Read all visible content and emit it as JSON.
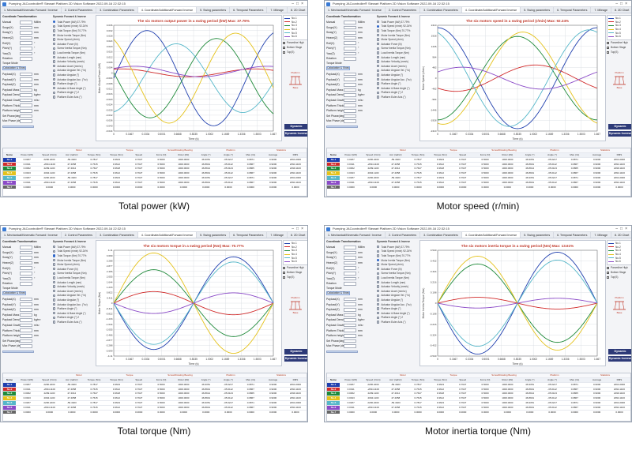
{
  "window": {
    "title": "Pumping JACcontroller® Stewart Platform 2D Vision Software 2022-09-16 22:32:15",
    "tabs": [
      "1. Mechanical/Kinematic Forward / Inverse",
      "2. Control Parameters",
      "3. Combination Parameters",
      "4. Coordinate/Additional/Forward Inverse",
      "5. Swing parameters",
      "6. Temporal Parameters",
      "7. Mileage",
      "8. 2D Chart",
      "9. Animation",
      "10. Simulator",
      "11. About"
    ],
    "active_tab": 3
  },
  "controls": {
    "header": "Coordinate Transformation",
    "rows": [
      {
        "label": "Manual",
        "value": "0.08",
        "unit": "Millim"
      },
      {
        "label": "Surge(X)",
        "value": "0",
        "unit": "mm"
      },
      {
        "label": "Sway(Y)",
        "value": "0",
        "unit": "mm"
      },
      {
        "label": "Heave(Z)",
        "value": "1.144",
        "unit": "mm"
      },
      {
        "label": "Roll(X)",
        "value": "0",
        "unit": "°"
      },
      {
        "label": "Pitch(Y)",
        "value": "0",
        "unit": "°"
      },
      {
        "label": "Yaw(Z)",
        "value": "0",
        "unit": "°"
      },
      {
        "label": "Rotation",
        "value": "1",
        "unit": ""
      },
      {
        "label": "Payload(X)",
        "value": "0.000",
        "unit": "mm"
      },
      {
        "label": "Payload(Y)",
        "value": "0.000",
        "unit": "mm"
      },
      {
        "label": "Payload(Z)",
        "value": "1000",
        "unit": "mm"
      },
      {
        "label": "Payload Mass",
        "value": "1000",
        "unit": "kg"
      },
      {
        "label": "Payload Density",
        "value": "7.85",
        "unit": "kg/m³"
      },
      {
        "label": "Payload Gravity",
        "value": "9.81",
        "unit": "m/s²"
      },
      {
        "label": "Platform Thickness",
        "value": "11.0",
        "unit": "mm"
      },
      {
        "label": "Platform height",
        "value": "100",
        "unit": "mm"
      },
      {
        "label": "Set Phase(deg)",
        "value": "0",
        "unit": ""
      },
      {
        "label": "Max Phase (deg)",
        "value": "360",
        "unit": ""
      }
    ],
    "torque_mode": "Torque Mode",
    "calc_button": "Calculation & Show",
    "cuboid_label": "Cuboid",
    "preset_label": "Preset"
  },
  "series_list": {
    "header": "Dynamic Forward & Inverse",
    "items": [
      {
        "label": "Total Power (kW) 37.79%",
        "on": false
      },
      {
        "label": "Total Speed (r/min) 92.24%",
        "on": false
      },
      {
        "label": "Total Torque (Nm) 70.77%",
        "on": false
      },
      {
        "label": "Motor Inertia Torque (Nm)",
        "on": false
      },
      {
        "label": "Motor Speed (r/min)",
        "on": false
      },
      {
        "label": "Actuator Force (N)",
        "on": false
      },
      {
        "label": "Screw Inertia Torque (Nm)",
        "on": false
      },
      {
        "label": "Load Inertia Torque (Nm)",
        "on": false
      },
      {
        "label": "Actuator Length (mm)",
        "on": false
      },
      {
        "label": "Actuator Velocity (mm/s)",
        "on": false
      },
      {
        "label": "Actuator Accel (mm/s²)",
        "on": false
      },
      {
        "label": "Actuator Angular Vel. (°/s)",
        "on": false
      },
      {
        "label": "Actuator Angular (°)",
        "on": false
      },
      {
        "label": "Actuator Angular Acc. (°/s²)",
        "on": false
      },
      {
        "label": "Platform Angle (°)",
        "on": false
      },
      {
        "label": "Actuator & Base Angle (°)",
        "on": false
      },
      {
        "label": "Platform Angle (°) 2",
        "on": false
      },
      {
        "label": "Platform Euler Axis (°)",
        "on": false
      }
    ]
  },
  "panels": [
    {
      "caption": "Total power (kW)",
      "selected_item": 0,
      "chart_data": {
        "type": "line",
        "title": "The six motors output power in a swing period (kW)   Max: 37.79%",
        "xlabel": "Time (s)",
        "ylabel": "Motor Output Power (kW)",
        "xlim": [
          0,
          1.667
        ],
        "ylim": [
          -0.044,
          0.036
        ],
        "x_ticks": [
          "0",
          "0.1667",
          "0.3334",
          "0.5001",
          "0.6668",
          "0.8335",
          "1.0002",
          "1.1669",
          "1.3336",
          "1.5003",
          "1.667"
        ],
        "y_ticks": [
          "0.036",
          "0.032",
          "0.028",
          "0.024",
          "0.020",
          "0.016",
          "0.012",
          "0.008",
          "0.004",
          "0",
          "-0.004",
          "-0.008",
          "-0.012",
          "-0.016",
          "-0.020",
          "-0.024",
          "-0.028",
          "-0.032",
          "-0.036",
          "-0.040",
          "-0.044"
        ],
        "grid": true,
        "legend_position": "top-right",
        "series": [
          {
            "name": "No.1",
            "color": "#1f3fae",
            "amp": 0.036,
            "phase": 0.0,
            "freq": 1.2,
            "offset": -0.004
          },
          {
            "name": "No.2",
            "color": "#d12a2a",
            "amp": 0.003,
            "phase": 1.2,
            "freq": 1.2,
            "offset": 0.0
          },
          {
            "name": "No.3",
            "color": "#1f8a3a",
            "amp": 0.03,
            "phase": 3.0,
            "freq": 1.2,
            "offset": -0.004
          },
          {
            "name": "No.4",
            "color": "#e5c21a",
            "amp": 0.034,
            "phase": 2.1,
            "freq": 1.2,
            "offset": -0.004
          },
          {
            "name": "No.5",
            "color": "#55b7c9",
            "amp": 0.026,
            "phase": 4.9,
            "freq": 1.2,
            "offset": -0.004
          },
          {
            "name": "No.6",
            "color": "#8a4ac7",
            "amp": 0.004,
            "phase": 0.6,
            "freq": 1.2,
            "offset": 0.001
          }
        ]
      }
    },
    {
      "caption": "Motor speed (r/min)",
      "selected_item": 1,
      "chart_data": {
        "type": "line",
        "title": "The six motors speed in a swing period (r/min)   Max: 92.24%",
        "xlabel": "Time (s)",
        "ylabel": "Motor Speed (r/min)",
        "xlim": [
          0,
          1.667
        ],
        "ylim": [
          -2410,
          2410
        ],
        "x_ticks": [
          "0",
          "0.1667",
          "0.3334",
          "0.5001",
          "0.6668",
          "0.8335",
          "1.0002",
          "1.1669",
          "1.3336",
          "1.5003",
          "1.667"
        ],
        "y_ticks": [
          "2410",
          "1928",
          "1446",
          "964",
          "482",
          "0",
          "-482",
          "-964",
          "-1446",
          "-1928",
          "-2410"
        ],
        "grid": true,
        "legend_position": "top-right",
        "series": [
          {
            "name": "No.1",
            "color": "#1f3fae",
            "amp": 2300,
            "phase": 1.57,
            "freq": 1.0,
            "offset": 0
          },
          {
            "name": "No.2",
            "color": "#d12a2a",
            "amp": 600,
            "phase": 4.0,
            "freq": 1.0,
            "offset": 0
          },
          {
            "name": "No.3",
            "color": "#1f8a3a",
            "amp": 1900,
            "phase": 4.71,
            "freq": 1.0,
            "offset": 0
          },
          {
            "name": "No.4",
            "color": "#e5c21a",
            "amp": 2100,
            "phase": 4.5,
            "freq": 1.0,
            "offset": 0
          },
          {
            "name": "No.5",
            "color": "#55b7c9",
            "amp": 2200,
            "phase": 1.9,
            "freq": 1.0,
            "offset": 0
          },
          {
            "name": "No.6",
            "color": "#8a4ac7",
            "amp": 500,
            "phase": 0.6,
            "freq": 1.0,
            "offset": 0
          }
        ]
      }
    },
    {
      "caption": "Total torque (Nm)",
      "selected_item": 2,
      "chart_data": {
        "type": "line",
        "title": "The six motors torque in a swing period (Nm)   Max: 70.77%",
        "xlabel": "Time (s)",
        "ylabel": "Motor Torque (Nm)",
        "xlim": [
          0,
          1.667
        ],
        "ylim": [
          -4.11,
          4.11
        ],
        "x_ticks": [
          "0",
          "0.1667",
          "0.3334",
          "0.5001",
          "0.6668",
          "0.8335",
          "1.0002",
          "1.1669",
          "1.3336",
          "1.5003",
          "1.667"
        ],
        "y_ticks": [
          "4.11",
          "3.699",
          "3.288",
          "2.877",
          "2.466",
          "2.055",
          "1.644",
          "1.233",
          "0.822",
          "0.411",
          "0",
          "-0.411",
          "-0.822",
          "-1.233",
          "-1.644",
          "-2.055",
          "-2.466",
          "-2.877",
          "-3.288",
          "-3.699",
          "-4.11"
        ],
        "grid": true,
        "legend_position": "top-right",
        "series": [
          {
            "name": "No.1",
            "color": "#1f3fae",
            "amp": 3.6,
            "phase": 3.14,
            "freq": 1.0,
            "offset": 0
          },
          {
            "name": "No.2",
            "color": "#d12a2a",
            "amp": 0.9,
            "phase": 0.0,
            "freq": 1.0,
            "offset": 0
          },
          {
            "name": "No.3",
            "color": "#1f8a3a",
            "amp": 2.6,
            "phase": 0.0,
            "freq": 1.0,
            "offset": 0
          },
          {
            "name": "No.4",
            "color": "#e5c21a",
            "amp": 3.9,
            "phase": 0.0,
            "freq": 1.0,
            "offset": 0
          },
          {
            "name": "No.5",
            "color": "#55b7c9",
            "amp": 3.2,
            "phase": 3.14,
            "freq": 1.0,
            "offset": 0
          },
          {
            "name": "No.6",
            "color": "#8a4ac7",
            "amp": 0.8,
            "phase": 3.14,
            "freq": 1.0,
            "offset": 0
          }
        ]
      }
    },
    {
      "caption": "Motor inertia torque (Nm)",
      "selected_item": 3,
      "chart_data": {
        "type": "line",
        "title": "The six motors inertia torque in a swing period (Nm)   Max: 13.61%",
        "xlabel": "Time (s)",
        "ylabel": "Motor Inertia Torque (Nm)",
        "xlim": [
          0,
          1.667
        ],
        "ylim": [
          -0.54,
          0.54
        ],
        "x_ticks": [
          "0",
          "0.1667",
          "0.3334",
          "0.5001",
          "0.6668",
          "0.8335",
          "1.0002",
          "1.1669",
          "1.3336",
          "1.5003",
          "1.667"
        ],
        "y_ticks": [
          "0.540",
          "0.432",
          "0.324",
          "0.216",
          "0.108",
          "0",
          "-0.108",
          "-0.216",
          "-0.324",
          "-0.432",
          "-0.540"
        ],
        "grid": true,
        "legend_position": "top-right",
        "series": [
          {
            "name": "No.1",
            "color": "#1f3fae",
            "amp": 0.52,
            "phase": 3.14,
            "freq": 1.0,
            "offset": 0
          },
          {
            "name": "No.2",
            "color": "#d12a2a",
            "amp": 0.06,
            "phase": 0.0,
            "freq": 1.0,
            "offset": 0
          },
          {
            "name": "No.3",
            "color": "#1f8a3a",
            "amp": 0.4,
            "phase": 0.0,
            "freq": 1.0,
            "offset": 0
          },
          {
            "name": "No.4",
            "color": "#e5c21a",
            "amp": 0.48,
            "phase": 0.0,
            "freq": 1.0,
            "offset": 0
          },
          {
            "name": "No.5",
            "color": "#55b7c9",
            "amp": 0.44,
            "phase": 3.14,
            "freq": 1.0,
            "offset": 0
          },
          {
            "name": "No.6",
            "color": "#8a4ac7",
            "amp": 0.05,
            "phase": 3.14,
            "freq": 1.0,
            "offset": 0
          }
        ]
      }
    }
  ],
  "side": {
    "checks": [
      "Paramline High",
      "Bottom Stage",
      "Top(S)"
    ],
    "forward_button": "Dynamic Forward",
    "inverse_button": "Dynamic Inverse",
    "platform_label": "Platform",
    "base_label": "Base"
  },
  "table": {
    "groups": [
      "",
      "Motor",
      "Torque",
      "Screw/Rotating Bearing",
      "Platform",
      "Statistics"
    ],
    "headers": [
      "Name",
      "Power (kW)",
      "Speed (r/min)",
      "Acc (rad/s²)",
      "Torque (Nm)",
      "Torque (Nm)",
      "Speed",
      "Force (N)",
      "Rotor (kN)",
      "Angle (°)",
      "Angle (°)",
      "Max (r/s)",
      "Average",
      "RMS"
    ],
    "rows": [
      {
        "name": "No.1",
        "color": "#1f3fae",
        "cells": [
          "0.0187",
          "2296.2200",
          "-59.4923",
          "0.7817",
          "0.3623",
          "0.7627",
          "0.5000",
          "1000.0000",
          "46.9351",
          "-35.0217",
          "0.0871",
          "0.9000",
          "2294.2000"
        ]
      },
      {
        "name": "No.2",
        "color": "#d12a2a",
        "cells": [
          "0.0011",
          "-2094.1100",
          "47.4058",
          "0.7615",
          "0.3612",
          "0.7627",
          "0.5000",
          "1000.0000",
          "46.8901",
          "-35.0112",
          "0.0867",
          "0.9000",
          "2094.1100"
        ]
      },
      {
        "name": "No.3",
        "color": "#1f8a3a",
        "cells": [
          "0.0062",
          "2299.1100",
          "47.4012",
          "0.7627",
          "0.3618",
          "0.7627",
          "0.5000",
          "1000.0000",
          "46.8914",
          "-35.0123",
          "0.0865",
          "0.9000",
          "2299.1100"
        ]
      },
      {
        "name": "No.4",
        "color": "#e5c21a",
        "cells": [
          "0.0193",
          "2094.1100",
          "47.4058",
          "0.7615",
          "0.3612",
          "0.7627",
          "0.5000",
          "1000.0000",
          "46.8901",
          "-35.0112",
          "0.0867",
          "0.9000",
          "2094.1100"
        ]
      },
      {
        "name": "No.5",
        "color": "#55b7c9",
        "cells": [
          "0.0187",
          "2296.2200",
          "-59.4923",
          "0.7817",
          "0.3623",
          "0.7627",
          "0.5000",
          "1000.0000",
          "46.9351",
          "-35.0217",
          "0.0871",
          "0.9000",
          "2294.2000"
        ]
      },
      {
        "name": "No.6",
        "color": "#8a4ac7",
        "cells": [
          "0.0011",
          "-2094.1100",
          "47.4058",
          "0.7615",
          "0.3612",
          "0.7627",
          "0.5000",
          "1000.0000",
          "46.8901",
          "-35.0112",
          "0.0867",
          "0.9000",
          "2094.1100"
        ]
      },
      {
        "name": "No.7",
        "color": "#666666",
        "cells": [
          "0.0000",
          "0.0000",
          "0.0000",
          "0.0000",
          "0.0000",
          "0.0000",
          "0.0000",
          "0.0000",
          "0.0000",
          "0.0000",
          "0.0000",
          "0.0000",
          "0.0000"
        ]
      }
    ]
  }
}
